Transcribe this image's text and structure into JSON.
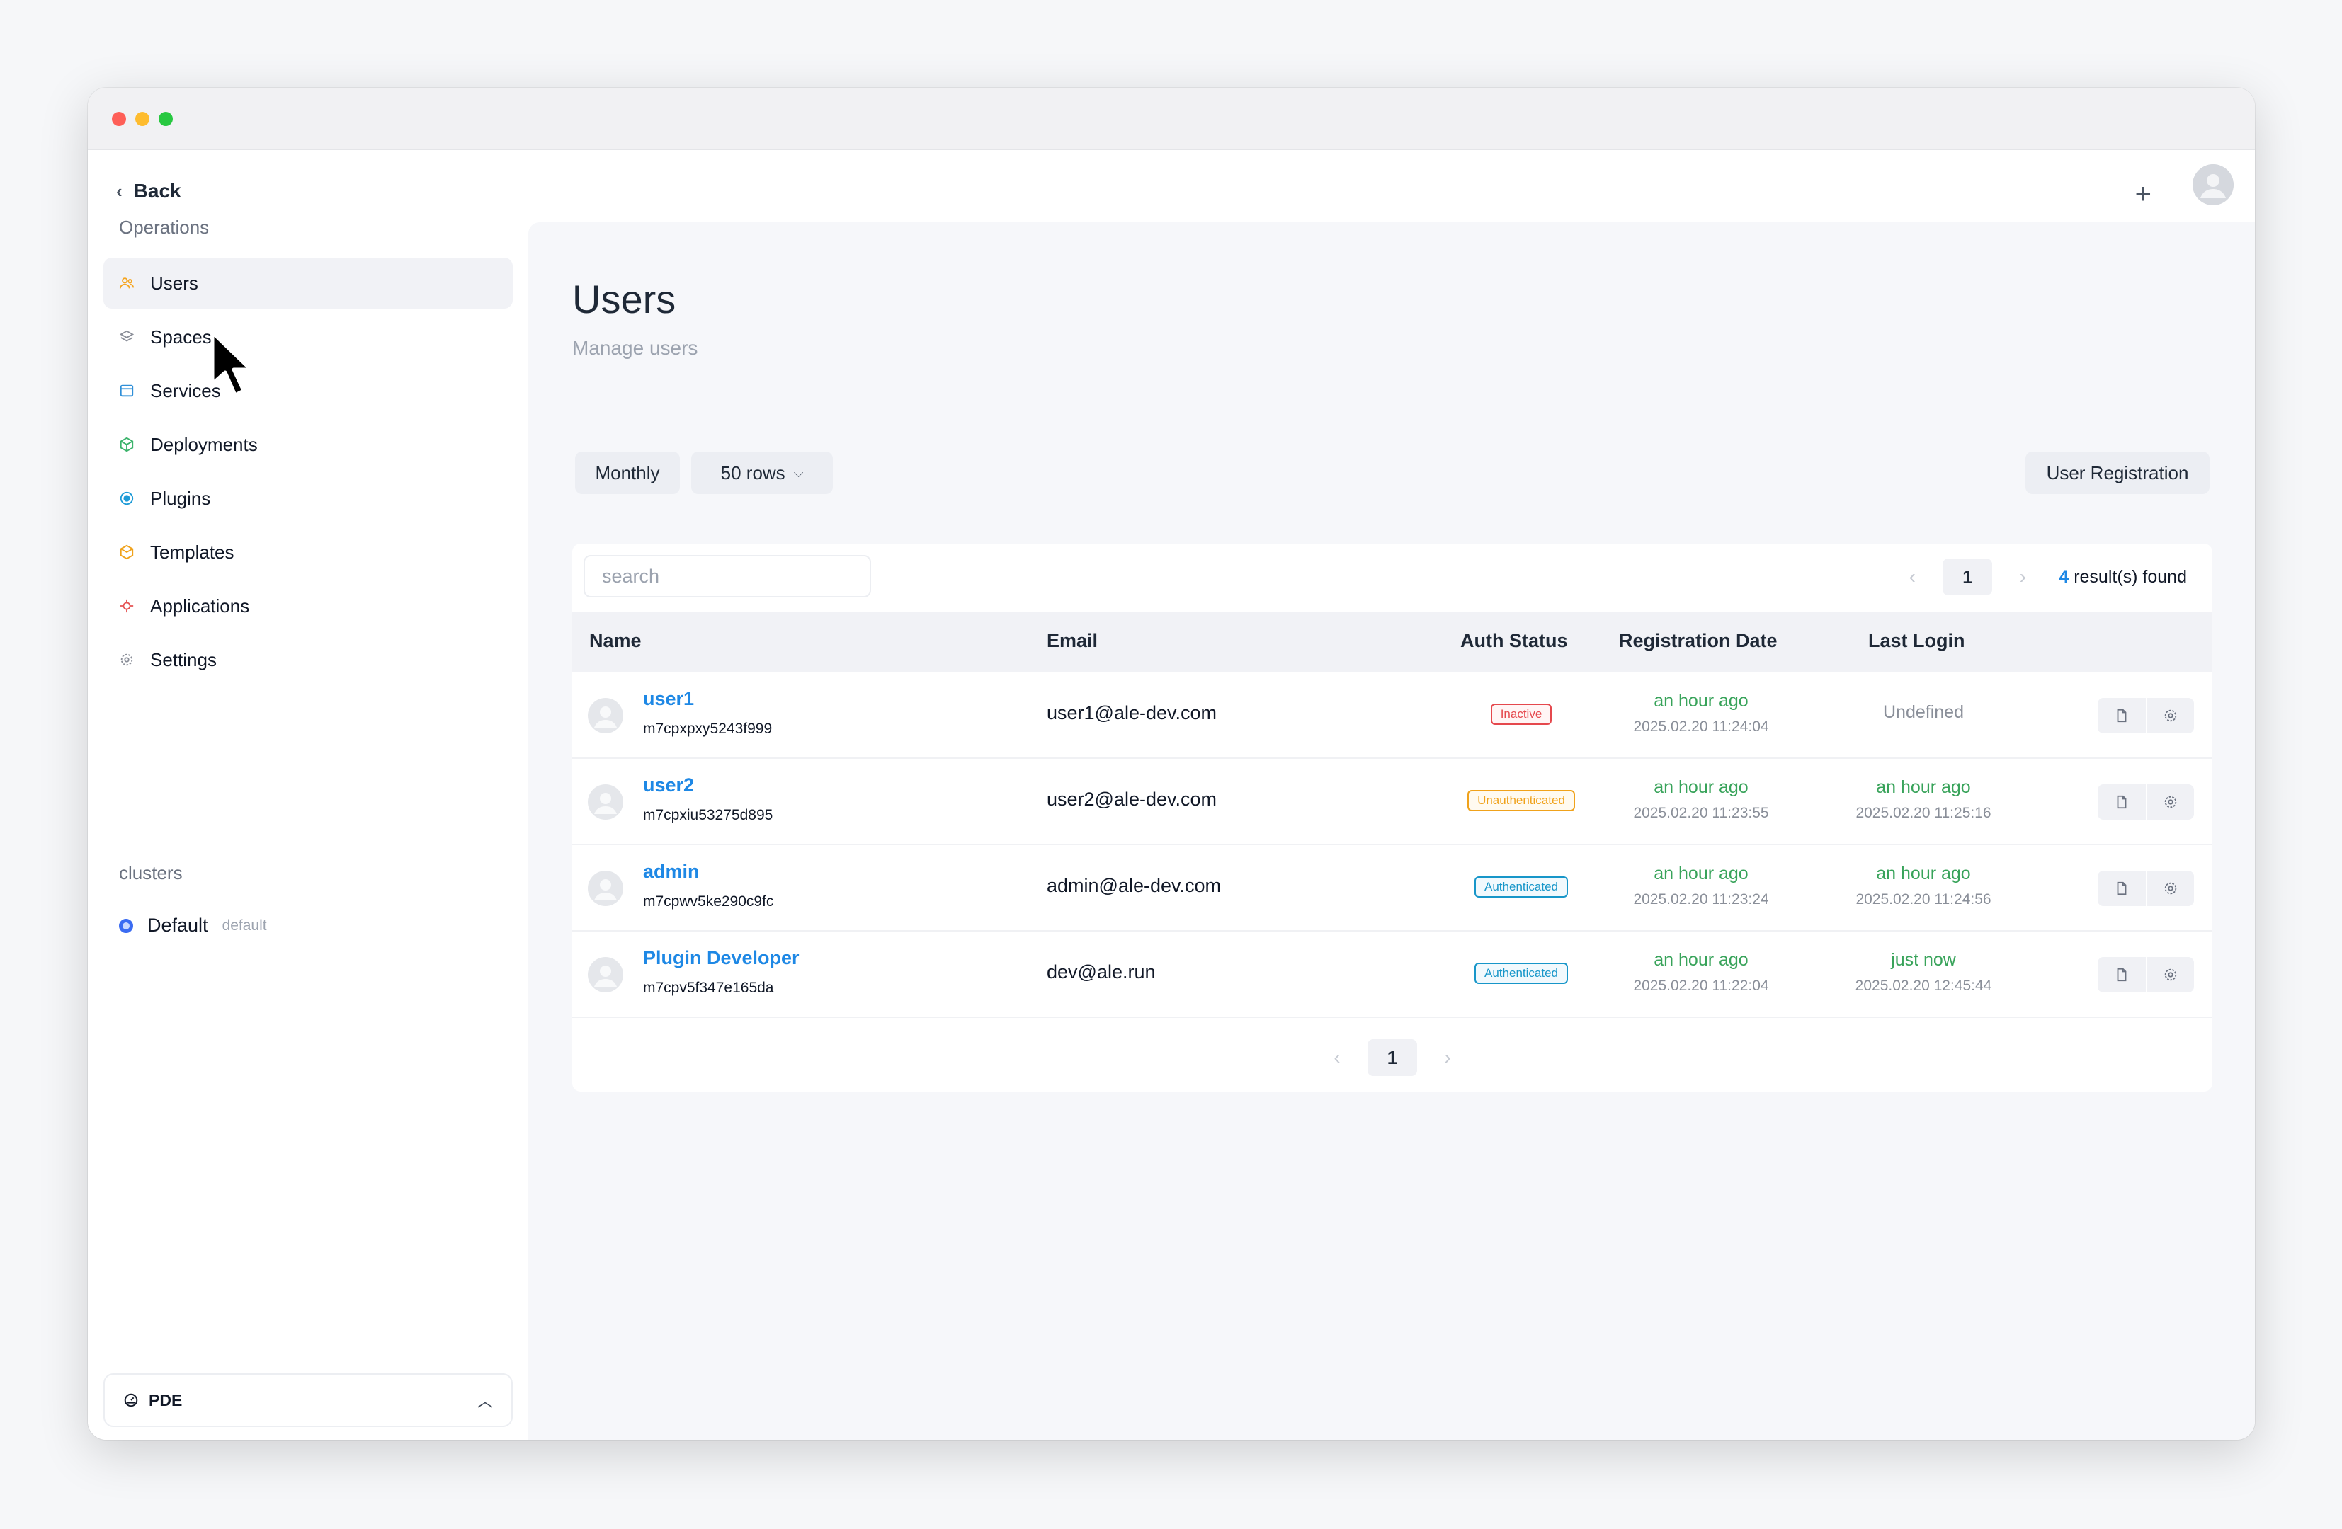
{
  "sidebar": {
    "back_label": "Back",
    "operations_label": "Operations",
    "items": [
      {
        "label": "Users",
        "icon": "users-icon",
        "color": "#f5a623",
        "active": true
      },
      {
        "label": "Spaces",
        "icon": "layers-icon",
        "color": "#8b8f99"
      },
      {
        "label": "Services",
        "icon": "window-icon",
        "color": "#2f8fd8"
      },
      {
        "label": "Deployments",
        "icon": "package-icon",
        "color": "#3bb36b"
      },
      {
        "label": "Plugins",
        "icon": "plugin-icon",
        "color": "#1e9bd7"
      },
      {
        "label": "Templates",
        "icon": "box-icon",
        "color": "#f0a21b"
      },
      {
        "label": "Applications",
        "icon": "app-icon",
        "color": "#e55353"
      },
      {
        "label": "Settings",
        "icon": "gear-icon",
        "color": "#8b8f99"
      }
    ],
    "clusters_label": "clusters",
    "cluster": {
      "name": "Default",
      "sub": "default"
    },
    "footer": {
      "label": "PDE",
      "icon": "dashboard-icon"
    }
  },
  "header": {
    "plus_icon": "plus-icon",
    "avatar_icon": "avatar-icon"
  },
  "main": {
    "title": "Users",
    "subtitle": "Manage users",
    "toolbar": {
      "monthly_label": "Monthly",
      "rows_label": "50 rows",
      "register_label": "User Registration"
    },
    "search": {
      "placeholder": "search",
      "value": ""
    },
    "pagination": {
      "current_page": "1",
      "result_count": "4",
      "result_suffix": " result(s) found"
    },
    "columns": {
      "name": "Name",
      "email": "Email",
      "auth_status": "Auth Status",
      "registration_date": "Registration Date",
      "last_login": "Last Login"
    },
    "rows": [
      {
        "name": "user1",
        "id": "m7cpxpxy5243f999",
        "email": "user1@ale-dev.com",
        "status": "Inactive",
        "status_kind": "inactive",
        "reg_rel": "an hour ago",
        "reg_abs": "2025.02.20 11:24:04",
        "login_rel": "Undefined",
        "login_abs": ""
      },
      {
        "name": "user2",
        "id": "m7cpxiu53275d895",
        "email": "user2@ale-dev.com",
        "status": "Unauthenticated",
        "status_kind": "unauth",
        "reg_rel": "an hour ago",
        "reg_abs": "2025.02.20 11:23:55",
        "login_rel": "an hour ago",
        "login_abs": "2025.02.20 11:25:16"
      },
      {
        "name": "admin",
        "id": "m7cpwv5ke290c9fc",
        "email": "admin@ale-dev.com",
        "status": "Authenticated",
        "status_kind": "auth",
        "reg_rel": "an hour ago",
        "reg_abs": "2025.02.20 11:23:24",
        "login_rel": "an hour ago",
        "login_abs": "2025.02.20 11:24:56"
      },
      {
        "name": "Plugin Developer",
        "id": "m7cpv5f347e165da",
        "email": "dev@ale.run",
        "status": "Authenticated",
        "status_kind": "auth",
        "reg_rel": "an hour ago",
        "reg_abs": "2025.02.20 11:22:04",
        "login_rel": "just now",
        "login_abs": "2025.02.20 12:45:44"
      }
    ]
  },
  "colors": {
    "accent": "#1e88e5",
    "success": "#38a35a",
    "danger": "#e5484d",
    "warning": "#f0a21b",
    "info": "#1796c9"
  }
}
